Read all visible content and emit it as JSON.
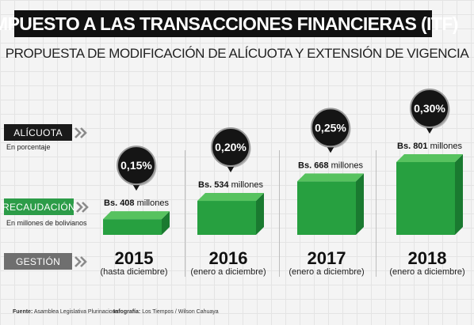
{
  "title": "IMPUESTO A LAS TRANSACCIONES FINANCIERAS (ITF)",
  "subtitle": "PROPUESTA DE MODIFICACIÓN DE ALÍCUOTA Y EXTENSIÓN DE VIGENCIA",
  "rows": {
    "alicuota": {
      "label": "ALÍCUOTA",
      "sub": "En porcentaje"
    },
    "recaudacion": {
      "label": "RECAUDACIÓN",
      "sub": "En millones de bolivianos"
    },
    "gestion": {
      "label": "GESTIÓN"
    }
  },
  "footer": {
    "source_label": "Fuente:",
    "source": "Asamblea Legislativa Plurinacional",
    "credit_label": "Infografía:",
    "credit": "Los Tiempos / Wilson Cahuaya"
  },
  "colors": {
    "bar_front": "#27a040",
    "bar_top": "#57c25f",
    "bar_side": "#1a7a30",
    "alicuota_tag": "#1a1a1a",
    "recaudacion_tag": "#2c9c48",
    "gestion_tag": "#6f6f6f"
  },
  "chart_data": {
    "type": "bar",
    "categories": [
      "2015",
      "2016",
      "2017",
      "2018"
    ],
    "periods": [
      "(hasta diciembre)",
      "(enero a diciembre)",
      "(enero a diciembre)",
      "(enero a diciembre)"
    ],
    "series": [
      {
        "values": [
          408,
          534,
          668,
          801
        ]
      }
    ],
    "value_labels": [
      {
        "prefix": "Bs.",
        "amount": "408",
        "unit": "millones"
      },
      {
        "prefix": "Bs.",
        "amount": "534",
        "unit": "millones"
      },
      {
        "prefix": "Bs.",
        "amount": "668",
        "unit": "millones"
      },
      {
        "prefix": "Bs.",
        "amount": "801",
        "unit": "millones"
      }
    ],
    "rates": [
      "0,15%",
      "0,20%",
      "0,25%",
      "0,30%"
    ],
    "ylim": [
      0,
      900
    ]
  }
}
